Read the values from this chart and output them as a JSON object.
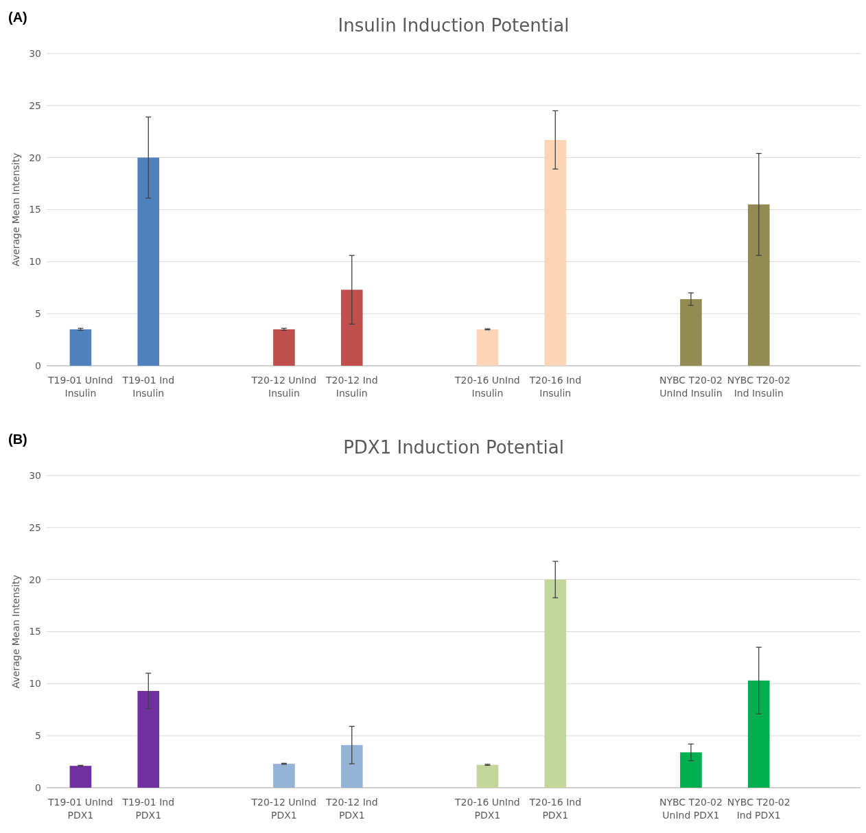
{
  "chart_data": [
    {
      "type": "bar",
      "title": "Insulin Induction Potential",
      "ylabel": "Average Mean Intensity",
      "annotations": [
        "(A)"
      ],
      "categories": [
        "T19-01 UnInd Insulin",
        "T19-01 Ind Insulin",
        null,
        "T20-12 UnInd Insulin",
        "T20-12 Ind Insulin",
        null,
        "T20-16 UnInd Insulin",
        "T20-16 Ind Insulin",
        null,
        "NYBC T20-02 UnInd Insulin",
        "NYBC T20-02 Ind Insulin",
        null
      ],
      "values": [
        3.5,
        20,
        null,
        3.5,
        7.3,
        null,
        3.5,
        21.7,
        null,
        6.4,
        15.5,
        null
      ],
      "errors": [
        0.1,
        3.9,
        null,
        0.1,
        3.3,
        null,
        0.05,
        2.8,
        null,
        0.6,
        4.9,
        null
      ],
      "colors": [
        "#4f81bd",
        "#4f81bd",
        null,
        "#c0504d",
        "#c0504d",
        null,
        "#fbd5b5",
        "#fbd5b5",
        null,
        "#938c52",
        "#938c52",
        null
      ],
      "ylim": [
        0,
        30
      ],
      "yticks": [
        0,
        5,
        10,
        15,
        20,
        25,
        30
      ],
      "grid": "y"
    },
    {
      "type": "bar",
      "title": "PDX1 Induction Potential",
      "ylabel": "Average Mean Intensity",
      "annotations": [
        "(B)"
      ],
      "categories": [
        "T19-01 UnInd PDX1",
        "T19-01 Ind PDX1",
        null,
        "T20-12 UnInd PDX1",
        "T20-12 Ind PDX1",
        null,
        "T20-16 UnInd PDX1",
        "T20-16 Ind PDX1",
        null,
        "NYBC T20-02 UnInd PDX1",
        "NYBC T20-02 Ind PDX1",
        null
      ],
      "values": [
        2.1,
        9.3,
        null,
        2.3,
        4.1,
        null,
        2.2,
        20,
        null,
        3.4,
        10.3,
        null
      ],
      "errors": [
        0.05,
        1.7,
        null,
        0.05,
        1.8,
        null,
        0.05,
        1.75,
        null,
        0.8,
        3.2,
        null
      ],
      "colors": [
        "#7030a0",
        "#7030a0",
        null,
        "#95b3d7",
        "#95b3d7",
        null,
        "#c3d69b",
        "#c3d69b",
        null,
        "#00b050",
        "#00b050",
        null
      ],
      "ylim": [
        0,
        30
      ],
      "yticks": [
        0,
        5,
        10,
        15,
        20,
        25,
        30
      ],
      "grid": "y"
    }
  ]
}
